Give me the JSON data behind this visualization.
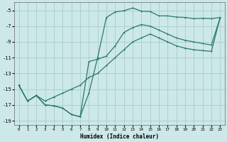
{
  "xlabel": "Humidex (Indice chaleur)",
  "background_color": "#cce8e8",
  "grid_color": "#aacccc",
  "line_color": "#2a7a6a",
  "xlim": [
    -0.5,
    23.5
  ],
  "ylim": [
    -19.5,
    -4.0
  ],
  "yticks": [
    -19,
    -17,
    -15,
    -13,
    -11,
    -9,
    -7,
    -5
  ],
  "xticks": [
    0,
    1,
    2,
    3,
    4,
    5,
    6,
    7,
    8,
    9,
    10,
    11,
    12,
    13,
    14,
    15,
    16,
    17,
    18,
    19,
    20,
    21,
    22,
    23
  ],
  "curve1_x": [
    0,
    1,
    2,
    3,
    4,
    5,
    6,
    7,
    8,
    9,
    10,
    11,
    12,
    13,
    14,
    15,
    16,
    17,
    18,
    19,
    20,
    21,
    22,
    23
  ],
  "curve1_y": [
    -14.5,
    -16.5,
    -15.8,
    -17.0,
    -17.1,
    -17.4,
    -18.2,
    -18.5,
    -15.5,
    -11.0,
    -5.9,
    -5.2,
    -5.05,
    -4.7,
    -5.1,
    -5.15,
    -5.7,
    -5.7,
    -5.85,
    -5.9,
    -6.05,
    -6.0,
    -6.05,
    -5.9
  ],
  "curve2_x": [
    0,
    1,
    2,
    3,
    4,
    5,
    6,
    7,
    8,
    9,
    10,
    11,
    12,
    13,
    14,
    15,
    16,
    17,
    18,
    19,
    20,
    21,
    22,
    23
  ],
  "curve2_y": [
    -14.5,
    -16.5,
    -15.8,
    -16.5,
    -16.0,
    -15.5,
    -15.0,
    -14.5,
    -13.5,
    -13.0,
    -12.0,
    -11.0,
    -10.0,
    -9.0,
    -8.5,
    -8.0,
    -8.5,
    -9.0,
    -9.5,
    -9.8,
    -10.0,
    -10.1,
    -10.2,
    -5.9
  ],
  "curve3_x": [
    0,
    1,
    2,
    3,
    4,
    5,
    6,
    7,
    8,
    9,
    10,
    11,
    12,
    13,
    14,
    15,
    16,
    17,
    18,
    19,
    20,
    21,
    22,
    23
  ],
  "curve3_y": [
    -14.5,
    -16.5,
    -15.8,
    -17.0,
    -17.1,
    -17.4,
    -18.2,
    -18.5,
    -11.5,
    -11.2,
    -10.8,
    -9.5,
    -7.8,
    -7.2,
    -6.8,
    -7.0,
    -7.5,
    -8.0,
    -8.5,
    -8.8,
    -9.0,
    -9.2,
    -9.4,
    -5.9
  ]
}
